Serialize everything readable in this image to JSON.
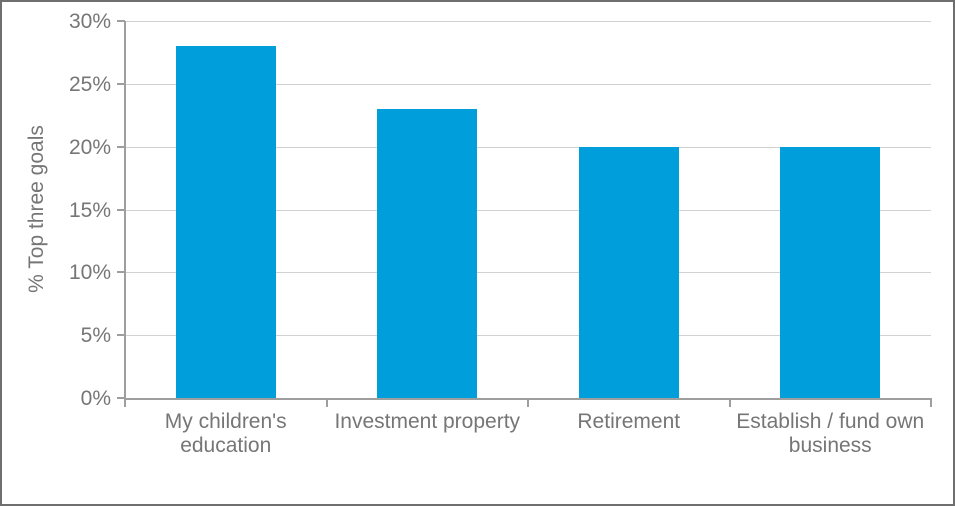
{
  "chart_data": {
    "type": "bar",
    "title": "",
    "categories": [
      "My children's education",
      "Investment property",
      "Retirement",
      "Establish / fund own business"
    ],
    "values": [
      28,
      23,
      20,
      20
    ],
    "value_format": "percent",
    "xlabel": "",
    "ylabel": "% Top three goals",
    "ylim": [
      0,
      30
    ],
    "yticks": [
      0,
      5,
      10,
      15,
      20,
      25,
      30
    ],
    "ytick_labels": [
      "0%",
      "5%",
      "10%",
      "15%",
      "20%",
      "25%",
      "30%"
    ],
    "grid": "horizontal",
    "legend": "none",
    "colors": {
      "bar": "#009EDB",
      "axis": "#9E9E9E",
      "gridline": "#D2D2D2",
      "text": "#767676",
      "frame_border": "#6F6F6F",
      "background": "#FFFFFF"
    }
  }
}
